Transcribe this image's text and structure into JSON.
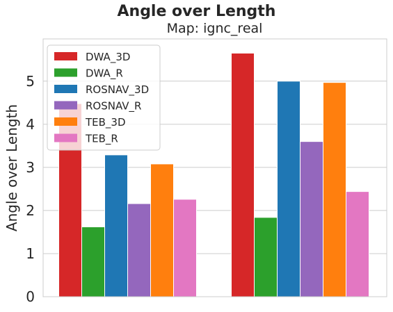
{
  "chart_data": {
    "type": "bar",
    "title": "Angle over Length",
    "subtitle": "Map: ignc_real",
    "ylabel": "Angle over Length",
    "xlabel": "",
    "ylim": [
      0,
      5.98
    ],
    "yticks": [
      0,
      1,
      2,
      3,
      4,
      5
    ],
    "categories": [
      "",
      ""
    ],
    "grid": "y",
    "legend_position": "top-left",
    "series": [
      {
        "name": "DWA_3D",
        "color": "#d62728",
        "values": [
          4.48,
          5.65
        ]
      },
      {
        "name": "DWA_R",
        "color": "#2ca02c",
        "values": [
          1.62,
          1.84
        ]
      },
      {
        "name": "ROSNAV_3D",
        "color": "#1f77b4",
        "values": [
          3.29,
          5.0
        ]
      },
      {
        "name": "ROSNAV_R",
        "color": "#9467bd",
        "values": [
          2.16,
          3.6
        ]
      },
      {
        "name": "TEB_3D",
        "color": "#ff7f0e",
        "values": [
          3.08,
          4.97
        ]
      },
      {
        "name": "TEB_R",
        "color": "#e377c2",
        "values": [
          2.26,
          2.44
        ]
      }
    ]
  }
}
